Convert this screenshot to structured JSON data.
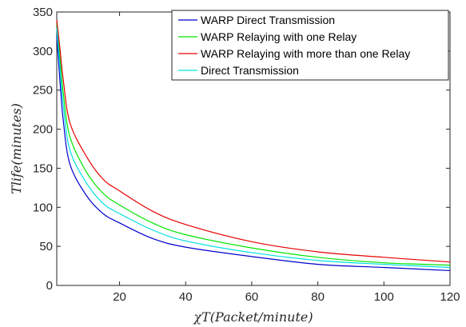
{
  "chart_data": {
    "type": "line",
    "xlabel": "χT(Packet/minute)",
    "ylabel": "Tlife(minutes)",
    "xlim": [
      1,
      120
    ],
    "ylim": [
      0,
      350
    ],
    "xticks": [
      20,
      40,
      60,
      80,
      100,
      120
    ],
    "yticks": [
      0,
      50,
      100,
      150,
      200,
      250,
      300,
      350
    ],
    "grid": false,
    "legend_position": "top-right",
    "series": [
      {
        "name": "WARP Direct Transmission",
        "color": "#0000cd",
        "x": [
          1,
          2,
          3,
          5,
          10,
          15,
          20,
          30,
          40,
          60,
          80,
          100,
          120
        ],
        "y": [
          320,
          260,
          210,
          155,
          115,
          92,
          80,
          60,
          49,
          37,
          27,
          23,
          19
        ]
      },
      {
        "name": "WARP Relaying with one Relay",
        "color": "#00e600",
        "x": [
          1,
          2,
          3,
          5,
          10,
          15,
          20,
          30,
          40,
          60,
          80,
          100,
          120
        ],
        "y": [
          336,
          290,
          245,
          190,
          145,
          118,
          103,
          80,
          65,
          48,
          36,
          29,
          26
        ]
      },
      {
        "name": "WARP Relaying with more than one Relay",
        "color": "#e60000",
        "x": [
          1,
          2,
          3,
          5,
          10,
          15,
          20,
          30,
          40,
          60,
          80,
          100,
          120
        ],
        "y": [
          340,
          302,
          262,
          208,
          165,
          136,
          121,
          95,
          78,
          56,
          43,
          36,
          30
        ]
      },
      {
        "name": "Direct Transmission",
        "color": "#00e0e0",
        "x": [
          1,
          2,
          3,
          5,
          10,
          15,
          20,
          30,
          40,
          60,
          80,
          100,
          120
        ],
        "y": [
          330,
          278,
          230,
          173,
          131,
          105,
          92,
          71,
          57,
          42,
          32,
          27,
          23
        ]
      }
    ]
  }
}
